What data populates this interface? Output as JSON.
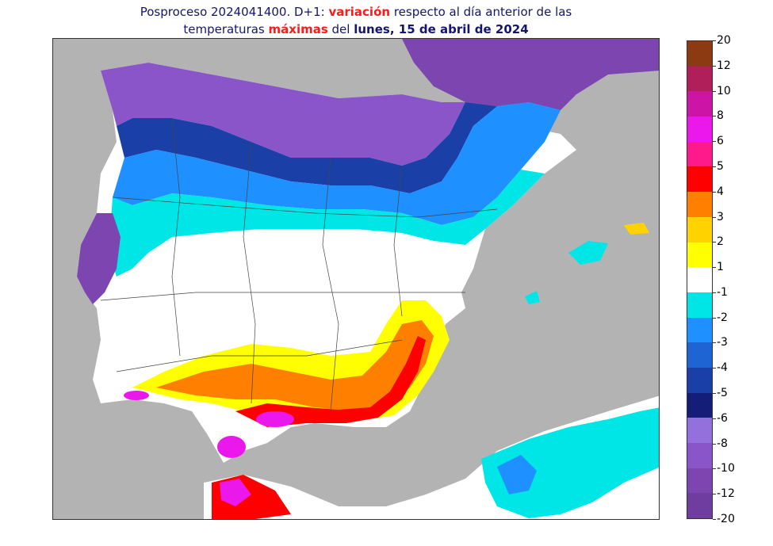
{
  "title": {
    "line1_prefix": "Posproceso 2024041400. D+1: ",
    "line1_highlight": "variación",
    "line1_suffix": " respecto al día anterior de las",
    "line2_prefix": "temperaturas ",
    "line2_highlight": "máximas",
    "line2_middle": " del ",
    "line2_bold": "lunes, 15 de abril de 2024"
  },
  "colors": {
    "title": "#15156e",
    "highlight": "#ff1a1a",
    "sea": "#b3b3b3",
    "land_neutral": "#ffffff"
  },
  "colorbar": {
    "labels": [
      "20",
      "12",
      "10",
      "8",
      "6",
      "5",
      "4",
      "3",
      "2",
      "1",
      "-1",
      "-2",
      "-3",
      "-4",
      "-5",
      "-6",
      "-8",
      "-10",
      "-12",
      "-20"
    ],
    "colors": [
      "#8b3a12",
      "#b01f5a",
      "#cc14a6",
      "#ea18ea",
      "#ff1a8c",
      "#ff0000",
      "#ff7f00",
      "#ffd200",
      "#ffff00",
      "#ffffff",
      "#00e6e6",
      "#1e90ff",
      "#1e64d2",
      "#1a40a8",
      "#141e78",
      "#9370db",
      "#8a55c8",
      "#7d45b0",
      "#6e3d9e"
    ]
  }
}
